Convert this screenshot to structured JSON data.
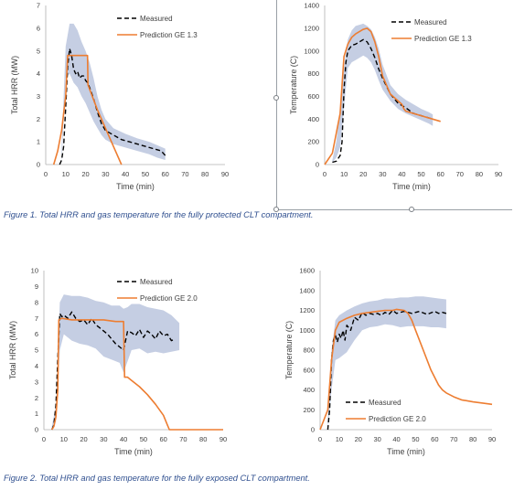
{
  "captions": {
    "fig1": "Figure 1. Total HRR and gas temperature for the fully protected CLT compartment.",
    "fig2": "Figure 2. Total HRR and gas temperature for the fully exposed CLT compartment."
  },
  "chart_data": [
    {
      "id": "fig1-hrr",
      "type": "line",
      "title": "",
      "xlabel": "Time (min)",
      "ylabel": "Total HRR (MW)",
      "xlim": [
        0,
        90
      ],
      "ylim": [
        0,
        7
      ],
      "xticks": [
        0,
        10,
        20,
        30,
        40,
        50,
        60,
        70,
        80,
        90
      ],
      "yticks": [
        0,
        1,
        2,
        3,
        4,
        5,
        6,
        7
      ],
      "legend": "top-right",
      "colors": {
        "measured": "#000000",
        "prediction": "#ed7d31",
        "band": "#c5cee3"
      },
      "band": {
        "x": [
          8,
          10,
          12,
          14,
          16,
          18,
          20,
          22,
          24,
          26,
          28,
          30,
          34,
          40,
          46,
          52,
          56,
          60
        ],
        "lower": [
          0.1,
          3.8,
          4.0,
          3.6,
          3.4,
          3.0,
          2.7,
          2.3,
          1.9,
          1.6,
          1.3,
          1.1,
          0.9,
          0.75,
          0.6,
          0.45,
          0.3,
          0.2
        ],
        "upper": [
          0.8,
          5.2,
          6.2,
          6.2,
          5.9,
          5.4,
          5.0,
          4.5,
          3.8,
          3.0,
          2.4,
          2.0,
          1.6,
          1.35,
          1.15,
          1.0,
          0.85,
          0.7
        ]
      },
      "series": [
        {
          "name": "Measured",
          "style": "dashed",
          "x": [
            7,
            8,
            9,
            10,
            11,
            12,
            13,
            14,
            15,
            16,
            17,
            18,
            19,
            20,
            21,
            22,
            24,
            26,
            28,
            30,
            34,
            38,
            42,
            46,
            50,
            54,
            58,
            60
          ],
          "y": [
            0,
            0.2,
            0.8,
            2.5,
            4.3,
            5.1,
            4.8,
            4.2,
            4.0,
            4.1,
            3.8,
            3.9,
            3.9,
            3.7,
            3.6,
            3.4,
            2.9,
            2.3,
            1.8,
            1.5,
            1.3,
            1.1,
            1.0,
            0.9,
            0.8,
            0.7,
            0.6,
            0.4
          ]
        },
        {
          "name": "Prediction GE 1.3",
          "style": "solid",
          "x": [
            4,
            6,
            8,
            10,
            11,
            12,
            13,
            14,
            18,
            21,
            21.2,
            26,
            30,
            34,
            38
          ],
          "y": [
            0,
            0.6,
            1.5,
            3.0,
            4.8,
            4.8,
            4.8,
            4.8,
            4.8,
            4.8,
            3.5,
            2.4,
            1.6,
            0.8,
            0
          ]
        }
      ]
    },
    {
      "id": "fig1-temp",
      "type": "line",
      "title": "",
      "xlabel": "Time (min)",
      "ylabel": "Temperature (C)",
      "xlim": [
        0,
        90
      ],
      "ylim": [
        0,
        1400
      ],
      "xticks": [
        0,
        10,
        20,
        30,
        40,
        50,
        60,
        70,
        80,
        90
      ],
      "yticks": [
        0,
        200,
        400,
        600,
        800,
        1000,
        1200,
        1400
      ],
      "legend": "top-right",
      "colors": {
        "measured": "#000000",
        "prediction": "#ed7d31",
        "band": "#c5cee3"
      },
      "band": {
        "x": [
          4,
          6,
          8,
          10,
          12,
          14,
          16,
          18,
          20,
          22,
          24,
          26,
          28,
          30,
          34,
          38,
          42,
          46,
          50,
          54,
          56
        ],
        "lower": [
          20,
          60,
          150,
          500,
          850,
          900,
          920,
          940,
          960,
          940,
          900,
          830,
          740,
          660,
          560,
          490,
          450,
          420,
          390,
          360,
          340
        ],
        "upper": [
          40,
          200,
          500,
          850,
          1100,
          1180,
          1220,
          1230,
          1240,
          1220,
          1190,
          1120,
          1020,
          880,
          700,
          620,
          570,
          530,
          490,
          460,
          440
        ]
      },
      "series": [
        {
          "name": "Measured",
          "style": "dashed",
          "x": [
            4,
            6,
            8,
            9,
            10,
            11,
            12,
            14,
            16,
            18,
            20,
            22,
            24,
            26,
            28,
            30,
            34,
            38,
            42,
            46,
            50,
            54,
            56
          ],
          "y": [
            20,
            30,
            80,
            200,
            650,
            900,
            1000,
            1050,
            1060,
            1080,
            1100,
            1080,
            1020,
            940,
            840,
            760,
            620,
            540,
            500,
            450,
            430,
            410,
            400
          ]
        },
        {
          "name": "Prediction GE 1.3",
          "style": "solid",
          "x": [
            0,
            4,
            8,
            10,
            12,
            14,
            16,
            18,
            20,
            22,
            24,
            26,
            28,
            30,
            34,
            38,
            40,
            41,
            42,
            46,
            50,
            56,
            60
          ],
          "y": [
            0,
            100,
            450,
            950,
            1060,
            1120,
            1150,
            1170,
            1190,
            1200,
            1170,
            1080,
            950,
            780,
            620,
            560,
            530,
            490,
            470,
            450,
            430,
            400,
            380
          ]
        }
      ]
    },
    {
      "id": "fig2-hrr",
      "type": "line",
      "title": "",
      "xlabel": "Time (min)",
      "ylabel": "Total HRR (MW)",
      "xlim": [
        0,
        90
      ],
      "ylim": [
        0,
        10
      ],
      "xticks": [
        0,
        10,
        20,
        30,
        40,
        50,
        60,
        70,
        80,
        90
      ],
      "yticks": [
        0,
        1,
        2,
        3,
        4,
        5,
        6,
        7,
        8,
        9,
        10
      ],
      "legend": "top-right",
      "colors": {
        "measured": "#000000",
        "prediction": "#ed7d31",
        "band": "#c5cee3"
      },
      "band": {
        "x": [
          4,
          6,
          8,
          10,
          14,
          18,
          22,
          26,
          30,
          34,
          38,
          40,
          42,
          44,
          48,
          52,
          56,
          60,
          64,
          68
        ],
        "lower": [
          0,
          0.5,
          5.0,
          6.0,
          5.6,
          5.4,
          5.3,
          5.1,
          4.6,
          4.4,
          4.2,
          3.6,
          4.3,
          5.0,
          5.1,
          4.8,
          4.9,
          4.8,
          4.9,
          5.0
        ],
        "upper": [
          0.2,
          1.5,
          8.0,
          8.5,
          8.4,
          8.4,
          8.3,
          8.1,
          8.0,
          7.8,
          7.8,
          7.6,
          7.7,
          7.9,
          7.9,
          7.7,
          7.6,
          7.5,
          7.2,
          6.7
        ]
      },
      "series": [
        {
          "name": "Measured",
          "style": "dashed",
          "x": [
            4,
            5,
            6,
            7,
            8,
            9,
            10,
            12,
            14,
            16,
            18,
            20,
            22,
            24,
            26,
            28,
            30,
            32,
            34,
            36,
            38,
            40,
            42,
            44,
            46,
            48,
            50,
            52,
            54,
            56,
            58,
            60,
            62,
            64,
            66
          ],
          "y": [
            0,
            0.3,
            1.5,
            4.5,
            7.3,
            7.1,
            7.2,
            7.0,
            7.4,
            7.0,
            6.8,
            6.9,
            6.6,
            7.0,
            6.6,
            6.4,
            6.2,
            6.0,
            5.7,
            5.4,
            5.2,
            5.0,
            6.2,
            6.1,
            5.9,
            6.3,
            5.8,
            6.2,
            6.0,
            5.7,
            6.2,
            5.9,
            6.0,
            5.6,
            5.7
          ]
        },
        {
          "name": "Prediction GE 2.0",
          "style": "solid",
          "x": [
            4,
            5,
            6,
            7,
            7.5,
            9,
            14,
            20,
            30,
            36,
            40,
            40.5,
            42,
            44,
            48,
            52,
            56,
            60,
            62,
            63,
            64,
            66,
            70,
            80,
            90
          ],
          "y": [
            0,
            0.2,
            0.8,
            2.5,
            6.9,
            7.0,
            6.9,
            6.9,
            6.9,
            6.8,
            6.8,
            3.3,
            3.3,
            3.1,
            2.7,
            2.2,
            1.6,
            0.9,
            0.3,
            0,
            0,
            0,
            0,
            0,
            0
          ]
        }
      ]
    },
    {
      "id": "fig2-temp",
      "type": "line",
      "title": "",
      "xlabel": "Time (min)",
      "ylabel": "Temperature (C)",
      "xlim": [
        0,
        90
      ],
      "ylim": [
        0,
        1600
      ],
      "xticks": [
        0,
        10,
        20,
        30,
        40,
        50,
        60,
        70,
        80,
        90
      ],
      "yticks": [
        0,
        200,
        400,
        600,
        800,
        1000,
        1200,
        1400,
        1600
      ],
      "legend": "bottom-center",
      "colors": {
        "measured": "#000000",
        "prediction": "#ed7d31",
        "band": "#c5cee3"
      },
      "band": {
        "x": [
          4,
          6,
          8,
          10,
          14,
          18,
          22,
          26,
          30,
          34,
          38,
          42,
          46,
          50,
          54,
          58,
          62,
          66
        ],
        "lower": [
          0,
          400,
          700,
          720,
          780,
          900,
          1000,
          1030,
          1040,
          1060,
          1050,
          1030,
          1040,
          1040,
          1040,
          1030,
          1030,
          1020
        ],
        "upper": [
          100,
          800,
          1100,
          1150,
          1200,
          1240,
          1270,
          1290,
          1300,
          1320,
          1320,
          1330,
          1330,
          1340,
          1340,
          1330,
          1320,
          1310
        ]
      },
      "series": [
        {
          "name": "Measured",
          "style": "dashed",
          "x": [
            4,
            5,
            6,
            7,
            8,
            9,
            10,
            11,
            12,
            13,
            14,
            16,
            18,
            20,
            22,
            24,
            26,
            28,
            30,
            32,
            34,
            36,
            38,
            40,
            44,
            48,
            52,
            56,
            60,
            62,
            64,
            66
          ],
          "y": [
            0,
            200,
            700,
            900,
            950,
            880,
            960,
            920,
            1000,
            900,
            1050,
            1000,
            1130,
            1100,
            1180,
            1150,
            1170,
            1160,
            1170,
            1150,
            1180,
            1160,
            1200,
            1170,
            1190,
            1170,
            1190,
            1160,
            1190,
            1170,
            1180,
            1170
          ]
        },
        {
          "name": "Prediction GE 2.0",
          "style": "solid",
          "x": [
            0,
            4,
            6,
            8,
            10,
            14,
            18,
            22,
            26,
            30,
            34,
            38,
            40,
            44,
            46,
            48,
            50,
            54,
            58,
            62,
            64,
            66,
            70,
            74,
            80,
            86,
            90
          ],
          "y": [
            0,
            200,
            700,
            1000,
            1080,
            1120,
            1150,
            1170,
            1180,
            1190,
            1200,
            1200,
            1210,
            1200,
            1170,
            1100,
            1000,
            800,
            600,
            450,
            400,
            370,
            330,
            300,
            280,
            265,
            255
          ]
        }
      ]
    }
  ]
}
